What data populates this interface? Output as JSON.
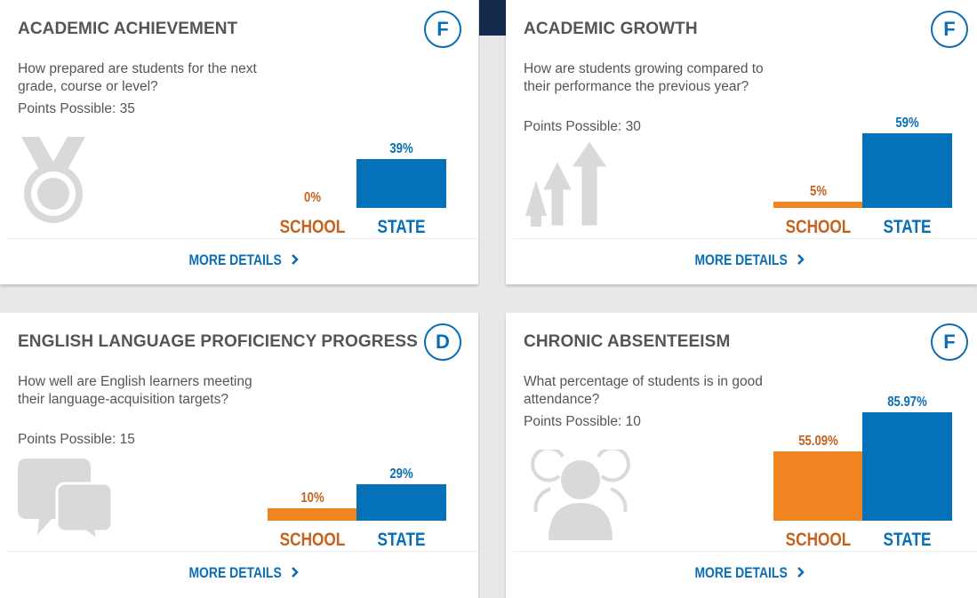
{
  "colors": {
    "school": "#f08421",
    "state": "#0571b8",
    "grade": "#0a6eb4",
    "icon": "#d9d9d9"
  },
  "cards": [
    {
      "title": "ACADEMIC ACHIEVEMENT",
      "grade": "F",
      "question": "How prepared are students for the next grade, course or level?",
      "points": "Points Possible: 35",
      "icon": "medal-icon",
      "school_value": "0%",
      "state_value": "39%",
      "school_pct": 0,
      "state_pct": 39,
      "school_label": "SCHOOL",
      "state_label": "STATE",
      "more": "MORE DETAILS"
    },
    {
      "title": "ACADEMIC GROWTH",
      "grade": "F",
      "question": "How are students growing compared to their performance the previous year?",
      "points": "Points Possible: 30",
      "icon": "growth-arrows-icon",
      "school_value": "5%",
      "state_value": "59%",
      "school_pct": 5,
      "state_pct": 59,
      "school_label": "SCHOOL",
      "state_label": "STATE",
      "more": "MORE DETAILS"
    },
    {
      "title": "ENGLISH LANGUAGE PROFICIENCY PROGRESS",
      "grade": "D",
      "question": "How well are English learners meeting their language-acquisition targets?",
      "points": "Points Possible: 15",
      "icon": "speech-bubbles-icon",
      "school_value": "10%",
      "state_value": "29%",
      "school_pct": 10,
      "state_pct": 29,
      "school_label": "SCHOOL",
      "state_label": "STATE",
      "more": "MORE DETAILS"
    },
    {
      "title": "CHRONIC ABSENTEEISM",
      "grade": "F",
      "question": "What percentage of students is in good attendance?",
      "points": "Points Possible: 10",
      "icon": "people-icon",
      "school_value": "55.09%",
      "state_value": "85.97%",
      "school_pct": 55.09,
      "state_pct": 85.97,
      "school_label": "SCHOOL",
      "state_label": "STATE",
      "more": "MORE DETAILS"
    }
  ]
}
